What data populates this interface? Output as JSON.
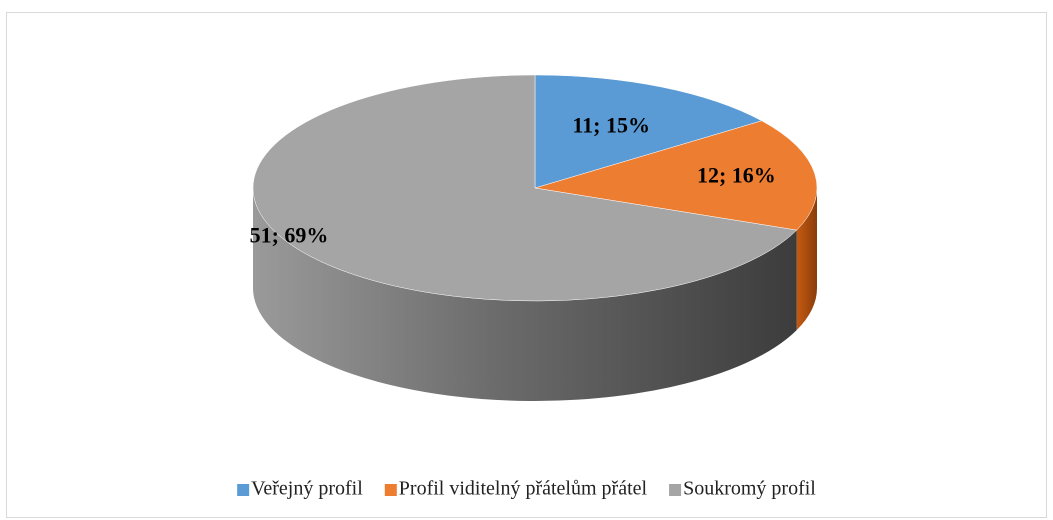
{
  "chart_data": {
    "type": "pie3d",
    "categories": [
      "Veřejný profil",
      "Profil viditelný přátelům přátel",
      "Soukromý profil"
    ],
    "values": [
      11,
      12,
      51
    ],
    "value_labels": [
      "11; 15%",
      "12; 16%",
      "51; 69%"
    ],
    "colors": [
      "#5b9bd5",
      "#ed7d31",
      "#a5a5a5"
    ],
    "legend": "bottom"
  }
}
